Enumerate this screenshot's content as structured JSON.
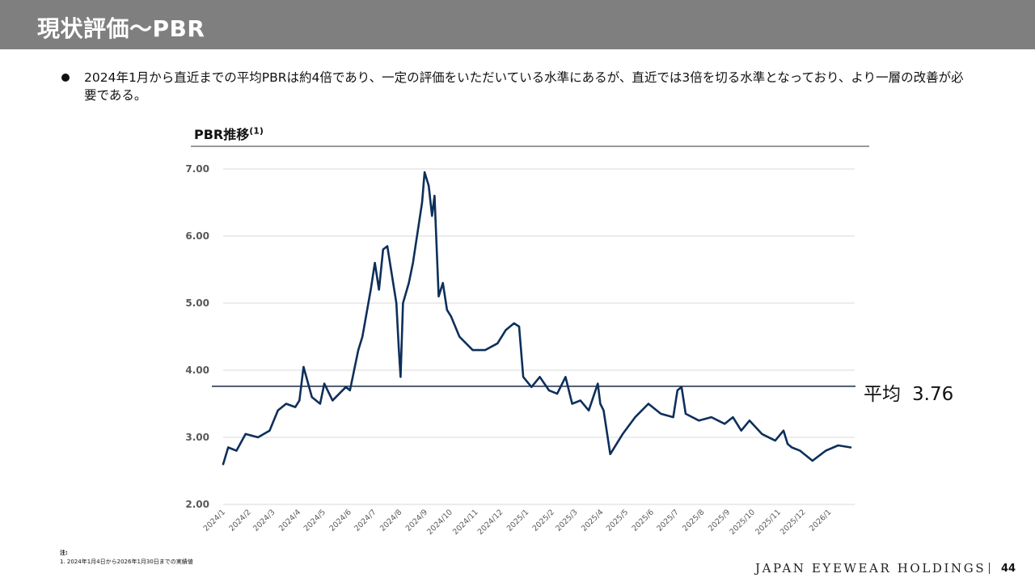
{
  "header": {
    "title": "現状評価〜PBR"
  },
  "bullet": {
    "text": "2024年1月から直近までの平均PBRは約4倍であり、一定の評価をいただいている水準にあるが、直近では3倍を切る水準となっており、より一層の改善が必要である。"
  },
  "chart_title": {
    "main": "PBR推移",
    "sup": "(1)"
  },
  "average": {
    "label": "平均",
    "value": "3.76"
  },
  "notes": {
    "head": "注:",
    "line1": "1. 2024年1月4日から2026年1月30日までの実績値"
  },
  "footer": {
    "company": "JAPAN EYEWEAR HOLDINGS",
    "page": "44"
  },
  "colors": {
    "line": "#0d2f5a",
    "grid": "#d9d9d9",
    "avg_line": "#1a2a45",
    "header_bg": "#7f7f7f"
  },
  "chart_data": {
    "type": "line",
    "title": "PBR推移",
    "ylim": [
      2.0,
      7.0
    ],
    "y_ticks": [
      "2.00",
      "3.00",
      "4.00",
      "5.00",
      "6.00",
      "7.00"
    ],
    "x_ticks": [
      "2024/1",
      "2024/2",
      "2024/3",
      "2024/4",
      "2024/5",
      "2024/6",
      "2024/7",
      "2024/8",
      "2024/9",
      "2024/10",
      "2024/11",
      "2024/12",
      "2025/1",
      "2025/2",
      "2025/3",
      "2025/4",
      "2025/5",
      "2025/6",
      "2025/7",
      "2025/8",
      "2025/9",
      "2025/10",
      "2025/11",
      "2025/12",
      "2026/1"
    ],
    "grid": true,
    "average_line": 3.76,
    "series": [
      {
        "x": [
          "2024/1/4",
          "2024/1/10",
          "2024/1/20",
          "2024/1/31",
          "2024/2/15",
          "2024/2/29",
          "2024/3/10",
          "2024/3/20",
          "2024/3/31",
          "2024/4/5",
          "2024/4/10",
          "2024/4/20",
          "2024/4/30",
          "2024/5/5",
          "2024/5/15",
          "2024/5/31",
          "2024/6/5",
          "2024/6/15",
          "2024/6/20",
          "2024/6/30",
          "2024/7/5",
          "2024/7/10",
          "2024/7/15",
          "2024/7/20",
          "2024/7/31",
          "2024/8/3",
          "2024/8/5",
          "2024/8/8",
          "2024/8/15",
          "2024/8/20",
          "2024/8/31",
          "2024/9/3",
          "2024/9/8",
          "2024/9/12",
          "2024/9/15",
          "2024/9/20",
          "2024/9/25",
          "2024/9/30",
          "2024/10/5",
          "2024/10/15",
          "2024/10/31",
          "2024/11/15",
          "2024/11/30",
          "2024/12/10",
          "2024/12/20",
          "2024/12/26",
          "2024/12/31",
          "2025/1/10",
          "2025/1/20",
          "2025/1/31",
          "2025/2/10",
          "2025/2/20",
          "2025/2/28",
          "2025/3/10",
          "2025/3/20",
          "2025/3/31",
          "2025/4/3",
          "2025/4/7",
          "2025/4/15",
          "2025/4/30",
          "2025/5/15",
          "2025/5/31",
          "2025/6/15",
          "2025/6/30",
          "2025/7/5",
          "2025/7/10",
          "2025/7/15",
          "2025/7/31",
          "2025/8/15",
          "2025/8/31",
          "2025/9/10",
          "2025/9/20",
          "2025/9/30",
          "2025/10/15",
          "2025/10/31",
          "2025/11/10",
          "2025/11/15",
          "2025/11/20",
          "2025/11/30",
          "2025/12/15",
          "2025/12/31",
          "2026/1/15",
          "2026/1/30"
        ],
        "values": [
          2.6,
          2.85,
          2.8,
          3.05,
          3.0,
          3.1,
          3.4,
          3.5,
          3.45,
          3.55,
          4.05,
          3.6,
          3.5,
          3.8,
          3.55,
          3.75,
          3.7,
          4.3,
          4.5,
          5.2,
          5.6,
          5.2,
          5.8,
          5.85,
          5.0,
          4.3,
          3.9,
          5.0,
          5.3,
          5.6,
          6.5,
          6.95,
          6.75,
          6.3,
          6.6,
          5.1,
          5.3,
          4.9,
          4.8,
          4.5,
          4.3,
          4.3,
          4.4,
          4.6,
          4.7,
          4.65,
          3.9,
          3.75,
          3.9,
          3.7,
          3.65,
          3.9,
          3.5,
          3.55,
          3.4,
          3.8,
          3.5,
          3.4,
          2.75,
          3.05,
          3.3,
          3.5,
          3.35,
          3.3,
          3.7,
          3.75,
          3.35,
          3.25,
          3.3,
          3.2,
          3.3,
          3.1,
          3.25,
          3.05,
          2.95,
          3.1,
          2.9,
          2.85,
          2.8,
          2.65,
          2.8,
          2.88,
          2.85
        ]
      }
    ]
  }
}
